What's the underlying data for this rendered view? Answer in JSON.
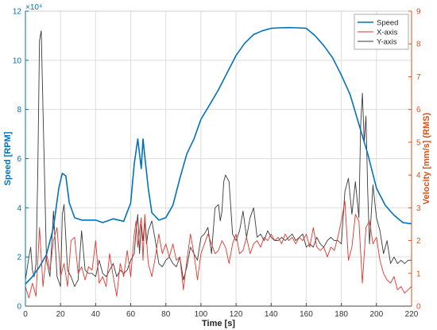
{
  "chart_data": {
    "type": "line",
    "xlabel": "Time [s]",
    "ylabel_left": "Speed [RPM]",
    "ylabel_right": "Velocity [mm/s] (RMS)",
    "left_exponent": "×10⁴",
    "xlim": [
      0,
      220
    ],
    "ylim_left": [
      0,
      12
    ],
    "ylim_right": [
      0,
      9
    ],
    "x_ticks": [
      0,
      20,
      40,
      60,
      80,
      100,
      120,
      140,
      160,
      180,
      200,
      220
    ],
    "left_ticks": [
      0,
      2,
      4,
      6,
      8,
      10,
      12
    ],
    "right_ticks": [
      0,
      1,
      2,
      3,
      4,
      5,
      6,
      7,
      8,
      9
    ],
    "grid": true,
    "legend_position": "top-right",
    "colors": {
      "speed": "#0072bd",
      "x_axis": "#e8342b",
      "y_axis": "#3a3a3a",
      "left_axis": "#0072bd",
      "right_axis": "#d95319",
      "grid": "#dddddd"
    },
    "series": [
      {
        "name": "Speed",
        "axis": "left",
        "x": [
          0,
          4,
          8,
          12,
          16,
          19,
          21,
          23,
          25,
          28,
          32,
          40,
          44,
          50,
          56,
          60,
          62,
          64,
          65,
          66,
          67,
          68,
          70,
          72,
          76,
          80,
          84,
          88,
          92,
          96,
          100,
          105,
          110,
          115,
          120,
          125,
          130,
          135,
          140,
          145,
          150,
          155,
          160,
          165,
          170,
          175,
          180,
          185,
          190,
          195,
          200,
          205,
          210,
          215,
          220
        ],
        "y": [
          0.9,
          1.2,
          1.6,
          2.1,
          3.2,
          4.8,
          5.4,
          5.3,
          4.2,
          3.6,
          3.5,
          3.5,
          3.4,
          3.55,
          3.45,
          4.2,
          5.8,
          6.8,
          6.2,
          5.6,
          6.8,
          6.1,
          4.8,
          3.8,
          3.5,
          3.6,
          4.1,
          5.2,
          6.2,
          6.8,
          7.6,
          8.2,
          8.8,
          9.5,
          10.2,
          10.7,
          11.05,
          11.2,
          11.3,
          11.32,
          11.33,
          11.32,
          11.3,
          11.0,
          10.6,
          10.1,
          9.4,
          8.6,
          7.4,
          6.2,
          4.8,
          4.1,
          3.7,
          3.4,
          3.35
        ]
      },
      {
        "name": "X-axis",
        "axis": "right",
        "x": [
          0,
          2,
          4,
          6,
          8,
          10,
          12,
          14,
          16,
          18,
          20,
          22,
          24,
          26,
          28,
          30,
          32,
          34,
          36,
          38,
          40,
          42,
          44,
          46,
          48,
          50,
          52,
          54,
          56,
          58,
          60,
          62,
          63,
          64,
          65,
          66,
          67,
          68,
          70,
          72,
          74,
          76,
          78,
          80,
          82,
          84,
          86,
          88,
          90,
          92,
          94,
          96,
          98,
          100,
          102,
          104,
          106,
          108,
          110,
          112,
          114,
          116,
          118,
          120,
          122,
          124,
          126,
          128,
          130,
          132,
          134,
          136,
          138,
          140,
          142,
          144,
          146,
          148,
          150,
          152,
          154,
          156,
          158,
          160,
          162,
          164,
          166,
          168,
          170,
          172,
          174,
          176,
          178,
          180,
          182,
          184,
          186,
          188,
          190,
          192,
          194,
          196,
          198,
          200,
          202,
          204,
          206,
          208,
          210,
          212,
          214,
          216,
          218,
          220
        ],
        "y": [
          0.6,
          0.25,
          0.7,
          0.3,
          2.4,
          0.6,
          1.6,
          1.1,
          2.0,
          2.4,
          0.9,
          1.3,
          0.6,
          2.0,
          2.1,
          1.0,
          1.2,
          0.8,
          1.2,
          1.1,
          2.0,
          0.7,
          0.9,
          0.6,
          1.6,
          0.9,
          0.3,
          1.3,
          0.9,
          1.7,
          0.9,
          2.2,
          2.6,
          1.8,
          2.3,
          2.7,
          1.4,
          2.8,
          1.3,
          0.9,
          1.5,
          2.2,
          1.6,
          1.9,
          1.5,
          1.9,
          1.4,
          1.5,
          0.5,
          1.4,
          2.2,
          1.6,
          0.8,
          1.6,
          1.9,
          2.2,
          1.9,
          1.6,
          1.7,
          2.0,
          1.8,
          1.3,
          1.9,
          2.2,
          1.6,
          1.7,
          2.1,
          1.6,
          1.9,
          2.0,
          1.8,
          2.1,
          2.0,
          2.2,
          2.0,
          2.1,
          1.9,
          2.2,
          2.0,
          2.1,
          1.9,
          2.1,
          2.0,
          2.2,
          1.8,
          2.4,
          1.8,
          1.7,
          1.8,
          1.5,
          1.8,
          1.7,
          2.1,
          2.6,
          3.2,
          1.4,
          1.8,
          2.8,
          2.6,
          0.7,
          2.4,
          2.6,
          1.9,
          2.1,
          1.4,
          1.0,
          0.8,
          0.7,
          0.9,
          0.5,
          0.6,
          0.4,
          0.5,
          0.6
        ]
      },
      {
        "name": "Y-axis",
        "axis": "right",
        "x": [
          0,
          2,
          3,
          4,
          5,
          6,
          7,
          8,
          9,
          10,
          12,
          14,
          16,
          18,
          20,
          21,
          22,
          24,
          26,
          28,
          30,
          32,
          34,
          36,
          38,
          40,
          42,
          44,
          46,
          48,
          50,
          52,
          54,
          56,
          58,
          60,
          62,
          63,
          64,
          65,
          66,
          67,
          68,
          69,
          70,
          72,
          74,
          76,
          78,
          80,
          82,
          84,
          86,
          88,
          90,
          92,
          94,
          96,
          98,
          100,
          102,
          104,
          106,
          108,
          110,
          111,
          112,
          113,
          114,
          115,
          116,
          118,
          120,
          122,
          124,
          126,
          128,
          130,
          132,
          134,
          136,
          138,
          140,
          142,
          144,
          146,
          148,
          150,
          152,
          154,
          156,
          158,
          160,
          162,
          164,
          166,
          168,
          170,
          172,
          174,
          176,
          178,
          180,
          182,
          184,
          186,
          188,
          190,
          191,
          192,
          193,
          194,
          195,
          196,
          198,
          200,
          202,
          204,
          206,
          208,
          210,
          212,
          214,
          216,
          218,
          220
        ],
        "y": [
          0.8,
          1.5,
          1.8,
          1.1,
          0.9,
          1.3,
          4.0,
          8.1,
          8.4,
          6.0,
          1.4,
          0.9,
          2.9,
          0.9,
          0.6,
          2.8,
          3.1,
          1.1,
          0.9,
          0.6,
          0.8,
          2.3,
          1.1,
          1.0,
          1.0,
          0.9,
          1.4,
          1.0,
          0.9,
          1.1,
          1.3,
          0.9,
          1.1,
          1.0,
          1.1,
          1.4,
          1.6,
          2.3,
          2.8,
          1.6,
          2.5,
          2.0,
          2.6,
          1.9,
          2.3,
          2.6,
          2.0,
          1.3,
          1.2,
          1.4,
          1.5,
          1.3,
          1.2,
          1.5,
          0.8,
          1.2,
          1.8,
          1.6,
          1.4,
          2.1,
          2.2,
          2.4,
          1.6,
          3.0,
          3.1,
          2.6,
          2.9,
          3.8,
          4.0,
          3.9,
          3.8,
          2.2,
          2.0,
          2.3,
          2.9,
          2.1,
          2.7,
          3.0,
          2.1,
          2.2,
          2.0,
          2.3,
          2.1,
          2.0,
          2.0,
          2.1,
          2.0,
          2.1,
          2.2,
          2.0,
          2.1,
          2.2,
          1.8,
          1.9,
          1.8,
          2.1,
          1.9,
          1.8,
          2.0,
          2.1,
          2.0,
          2.0,
          1.9,
          3.5,
          3.9,
          2.8,
          3.8,
          2.7,
          5.5,
          6.5,
          5.0,
          5.8,
          3.5,
          1.9,
          3.7,
          2.7,
          2.3,
          1.6,
          2.0,
          1.3,
          1.5,
          1.3,
          1.4,
          1.3,
          1.4,
          1.4
        ]
      }
    ]
  }
}
